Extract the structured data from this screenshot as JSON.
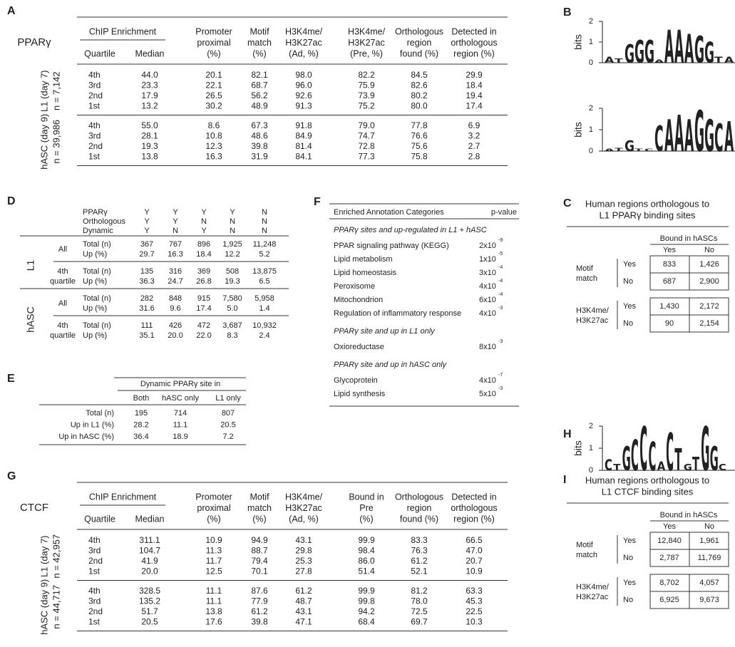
{
  "panel_a": {
    "label": "A",
    "factor": "PPARγ",
    "chip_header": "ChIP Enrichment",
    "quartile_header": "Quartile",
    "median_header": "Median",
    "columns": [
      [
        "Promoter",
        "proximal",
        "(%)"
      ],
      [
        "Motif",
        "match",
        "(%)"
      ],
      [
        "H3K4me/",
        "H3K27ac",
        "(Ad, %)"
      ],
      [
        "H3K4me/",
        "H3K27ac",
        "(Pre, %)"
      ],
      [
        "Orthologous",
        "region",
        "found (%)"
      ],
      [
        "Detected in",
        "orthologous",
        "region (%)"
      ]
    ],
    "groups": [
      {
        "name": [
          "L1 (day 7)",
          "n = 7,142"
        ],
        "rows": [
          [
            "4th",
            "44.0",
            "20.1",
            "82.1",
            "98.0",
            "82.2",
            "84.5",
            "29.9"
          ],
          [
            "3rd",
            "23.3",
            "22.1",
            "68.7",
            "96.0",
            "75.9",
            "82.6",
            "18.4"
          ],
          [
            "2nd",
            "17.9",
            "26.5",
            "56.2",
            "92.6",
            "73.9",
            "80.2",
            "19.4"
          ],
          [
            "1st",
            "13.2",
            "30.2",
            "48.9",
            "91.3",
            "75.2",
            "80.0",
            "17.4"
          ]
        ]
      },
      {
        "name": [
          "hASC (day 9)",
          "n = 39,986"
        ],
        "rows": [
          [
            "4th",
            "55.0",
            "8.6",
            "67.3",
            "91.8",
            "79.0",
            "77.8",
            "6.9"
          ],
          [
            "3rd",
            "28.1",
            "10.8",
            "48.6",
            "84.9",
            "74.7",
            "76.6",
            "3.2"
          ],
          [
            "2nd",
            "19.3",
            "12.3",
            "39.8",
            "81.4",
            "72.8",
            "75.6",
            "2.7"
          ],
          [
            "1st",
            "13.8",
            "16.3",
            "31.9",
            "84.1",
            "77.3",
            "75.8",
            "2.8"
          ]
        ]
      }
    ]
  },
  "panel_b": {
    "label": "B",
    "logos": [
      {
        "axis_label": "bits",
        "ylim": [
          0,
          2
        ],
        "yticks": [
          0,
          1,
          2
        ],
        "letters": [
          {
            "letter": "A",
            "height": 0.3
          },
          {
            "letter": "T",
            "height": 0.2
          },
          {
            "letter": "G",
            "height": 0.9
          },
          {
            "letter": "G",
            "height": 1.1
          },
          {
            "letter": "G",
            "height": 1.1
          },
          {
            "letter": "A",
            "height": 0.15
          },
          {
            "letter": "A",
            "height": 1.6
          },
          {
            "letter": "A",
            "height": 1.6
          },
          {
            "letter": "A",
            "height": 1.4
          },
          {
            "letter": "G",
            "height": 1.3
          },
          {
            "letter": "G",
            "height": 1.0
          },
          {
            "letter": "T",
            "height": 0.3
          },
          {
            "letter": "A",
            "height": 0.3
          }
        ]
      },
      {
        "axis_label": "bits",
        "ylim": [
          0,
          2
        ],
        "yticks": [
          0,
          1,
          2
        ],
        "letters": [
          {
            "letter": "A",
            "height": 0.1
          },
          {
            "letter": "T",
            "height": 0.15
          },
          {
            "letter": "G",
            "height": 0.5
          },
          {
            "letter": "T",
            "height": 0.1
          },
          {
            "letter": "C",
            "height": 0.1
          },
          {
            "letter": "C",
            "height": 1.2
          },
          {
            "letter": "A",
            "height": 1.5
          },
          {
            "letter": "A",
            "height": 1.7
          },
          {
            "letter": "A",
            "height": 1.5
          },
          {
            "letter": "G",
            "height": 1.9
          },
          {
            "letter": "G",
            "height": 1.5
          },
          {
            "letter": "C",
            "height": 1.3
          },
          {
            "letter": "A",
            "height": 1.4
          }
        ]
      }
    ]
  },
  "panel_c": {
    "label": "C",
    "title": [
      "Human regions orthologous to",
      "L1 PPARγ binding sites"
    ],
    "column_group": "Bound in hASCs",
    "columns": [
      "Yes",
      "No"
    ],
    "blocks": [
      {
        "name": [
          "Motif",
          "match"
        ],
        "rows": [
          {
            "label": "Yes",
            "values": [
              "833",
              "1,426"
            ]
          },
          {
            "label": "No",
            "values": [
              "687",
              "2,900"
            ]
          }
        ]
      },
      {
        "name": [
          "H3K4me/",
          "H3K27ac"
        ],
        "rows": [
          {
            "label": "Yes",
            "values": [
              "1,430",
              "2,172"
            ]
          },
          {
            "label": "No",
            "values": [
              "90",
              "2,154"
            ]
          }
        ]
      }
    ]
  },
  "panel_d": {
    "label": "D",
    "header_rows": [
      {
        "label": "PPARγ",
        "values": [
          "Y",
          "Y",
          "Y",
          "Y",
          "N"
        ]
      },
      {
        "label": "Orthologous",
        "values": [
          "Y",
          "Y",
          "N",
          "N",
          "N"
        ]
      },
      {
        "label": "Dynamic",
        "values": [
          "Y",
          "N",
          "Y",
          "N",
          "N"
        ]
      }
    ],
    "sections": [
      {
        "name": "L1",
        "groups": [
          {
            "name": [
              "All"
            ],
            "rows": [
              {
                "label": "Total (n)",
                "values": [
                  "367",
                  "767",
                  "896",
                  "1,925",
                  "11,248"
                ]
              },
              {
                "label": "Up (%)",
                "values": [
                  "29.7",
                  "16.3",
                  "18.4",
                  "12.2",
                  "5.2"
                ]
              }
            ]
          },
          {
            "name": [
              "4th",
              "quartile"
            ],
            "rows": [
              {
                "label": "Total (n)",
                "values": [
                  "135",
                  "316",
                  "369",
                  "508",
                  "13,875"
                ]
              },
              {
                "label": "Up (%)",
                "values": [
                  "36.3",
                  "24.7",
                  "26.8",
                  "19.3",
                  "6.5"
                ]
              }
            ]
          }
        ]
      },
      {
        "name": "hASC",
        "groups": [
          {
            "name": [
              "All"
            ],
            "rows": [
              {
                "label": "Total (n)",
                "values": [
                  "282",
                  "848",
                  "915",
                  "7,580",
                  "5,958"
                ]
              },
              {
                "label": "Up (%)",
                "values": [
                  "31.6",
                  "9.6",
                  "17.4",
                  "5.0",
                  "1.4"
                ]
              }
            ]
          },
          {
            "name": [
              "4th",
              "quartile"
            ],
            "rows": [
              {
                "label": "Total (n)",
                "values": [
                  "111",
                  "426",
                  "472",
                  "3,687",
                  "10,932"
                ]
              },
              {
                "label": "Up (%)",
                "values": [
                  "35.1",
                  "20.0",
                  "22.0",
                  "8.3",
                  "2.4"
                ]
              }
            ]
          }
        ]
      }
    ]
  },
  "panel_e": {
    "label": "E",
    "column_group": "Dynamic PPARγ site in",
    "columns": [
      "Both",
      "hASC only",
      "L1 only"
    ],
    "rows": [
      {
        "label": "Total (n)",
        "values": [
          "195",
          "714",
          "807"
        ]
      },
      {
        "label": "Up in L1 (%)",
        "values": [
          "28.2",
          "11.1",
          "20.5"
        ]
      },
      {
        "label": "Up in hASC (%)",
        "values": [
          "36.4",
          "18.9",
          "7.2"
        ]
      }
    ]
  },
  "panel_f": {
    "label": "F",
    "header": [
      "Enriched Annotation Categories",
      "p-value"
    ],
    "sections": [
      {
        "title": "PPARγ sites and up-regulated in L1 + hASC",
        "rows": [
          {
            "label": "PPAR signaling pathway (KEGG)",
            "p_base": "2x10",
            "p_exp": "-9"
          },
          {
            "label": "Lipid metabolism",
            "p_base": "1x10",
            "p_exp": "-5"
          },
          {
            "label": "Lipid homeostasis",
            "p_base": "3x10",
            "p_exp": "-4"
          },
          {
            "label": "Peroxisome",
            "p_base": "4x10",
            "p_exp": "-4"
          },
          {
            "label": "Mitochondrion",
            "p_base": "6x10",
            "p_exp": "-4"
          },
          {
            "label": "Regulation of inflammatory response",
            "p_base": "4x10",
            "p_exp": "-3"
          }
        ]
      },
      {
        "title": "PPARγ site and up in L1 only",
        "rows": [
          {
            "label": "Oxioreductase",
            "p_base": "8x10",
            "p_exp": "-3"
          }
        ]
      },
      {
        "title": "PPARγ site and up in hASC only",
        "rows": [
          {
            "label": "Glycoprotein",
            "p_base": "4x10",
            "p_exp": "-7"
          },
          {
            "label": "Lipid synthesis",
            "p_base": "5x10",
            "p_exp": "-3"
          }
        ]
      }
    ]
  },
  "panel_g": {
    "label": "G",
    "factor": "CTCF",
    "chip_header": "ChIP Enrichment",
    "quartile_header": "Quartile",
    "median_header": "Median",
    "columns": [
      [
        "Promoter",
        "proximal",
        "(%)"
      ],
      [
        "Motif",
        "match",
        "(%)"
      ],
      [
        "H3K4me/",
        "H3K27ac",
        "(Ad, %)"
      ],
      [
        "Bound in",
        "Pre",
        "(%)"
      ],
      [
        "Orthologous",
        "region",
        "found (%)"
      ],
      [
        "Detected in",
        "orthologous",
        "region (%)"
      ]
    ],
    "groups": [
      {
        "name": [
          "L1 (day 7)",
          "n = 42,957"
        ],
        "rows": [
          [
            "4th",
            "311.1",
            "10.9",
            "94.9",
            "43.1",
            "99.9",
            "83.3",
            "66.5"
          ],
          [
            "3rd",
            "104.7",
            "11.3",
            "88.7",
            "29.8",
            "98.4",
            "76.3",
            "47.0"
          ],
          [
            "2nd",
            "41.9",
            "11.7",
            "79.4",
            "25.3",
            "86.0",
            "61.2",
            "20.7"
          ],
          [
            "1st",
            "20.0",
            "12.5",
            "70.1",
            "27.8",
            "51.4",
            "52.1",
            "10.9"
          ]
        ]
      },
      {
        "name": [
          "hASC (day 9)",
          "n = 44,717"
        ],
        "rows": [
          [
            "4th",
            "328.5",
            "11.1",
            "87.6",
            "61.2",
            "99.9",
            "81.2",
            "63.3"
          ],
          [
            "3rd",
            "135.2",
            "11.1",
            "77.9",
            "48.7",
            "99.8",
            "78.0",
            "45.3"
          ],
          [
            "2nd",
            "51.7",
            "13.8",
            "61.2",
            "43.1",
            "94.2",
            "72.5",
            "22.5"
          ],
          [
            "1st",
            "20.5",
            "17.6",
            "39.8",
            "47.1",
            "68.4",
            "69.7",
            "10.3"
          ]
        ]
      }
    ]
  },
  "panel_h": {
    "label": "H",
    "logos": [
      {
        "axis_label": "bits",
        "ylim": [
          0,
          2
        ],
        "yticks": [
          0,
          1,
          2
        ],
        "letters": [
          {
            "letter": "C",
            "height": 0.5
          },
          {
            "letter": "T",
            "height": 0.3
          },
          {
            "letter": "G",
            "height": 1.1
          },
          {
            "letter": "C",
            "height": 1.4
          },
          {
            "letter": "C",
            "height": 2.0
          },
          {
            "letter": "C",
            "height": 1.3
          },
          {
            "letter": "A",
            "height": 0.4
          },
          {
            "letter": "C",
            "height": 1.7
          },
          {
            "letter": "T",
            "height": 1.0
          },
          {
            "letter": "G",
            "height": 0.3
          },
          {
            "letter": "T",
            "height": 0.6
          },
          {
            "letter": "G",
            "height": 2.0
          },
          {
            "letter": "G",
            "height": 1.1
          },
          {
            "letter": "C",
            "height": 0.3
          }
        ]
      }
    ]
  },
  "panel_i": {
    "label": "I",
    "title": [
      "Human regions orthologous to",
      "L1 CTCF binding sites"
    ],
    "column_group": "Bound in hASCs",
    "columns": [
      "Yes",
      "No"
    ],
    "blocks": [
      {
        "name": [
          "Motif",
          "match"
        ],
        "rows": [
          {
            "label": "Yes",
            "values": [
              "12,840",
              "1,961"
            ]
          },
          {
            "label": "No",
            "values": [
              "2,787",
              "11,769"
            ]
          }
        ]
      },
      {
        "name": [
          "H3K4me/",
          "H3K27ac"
        ],
        "rows": [
          {
            "label": "Yes",
            "values": [
              "8,702",
              "4,057"
            ]
          },
          {
            "label": "No",
            "values": [
              "6,925",
              "9,673"
            ]
          }
        ]
      }
    ]
  }
}
